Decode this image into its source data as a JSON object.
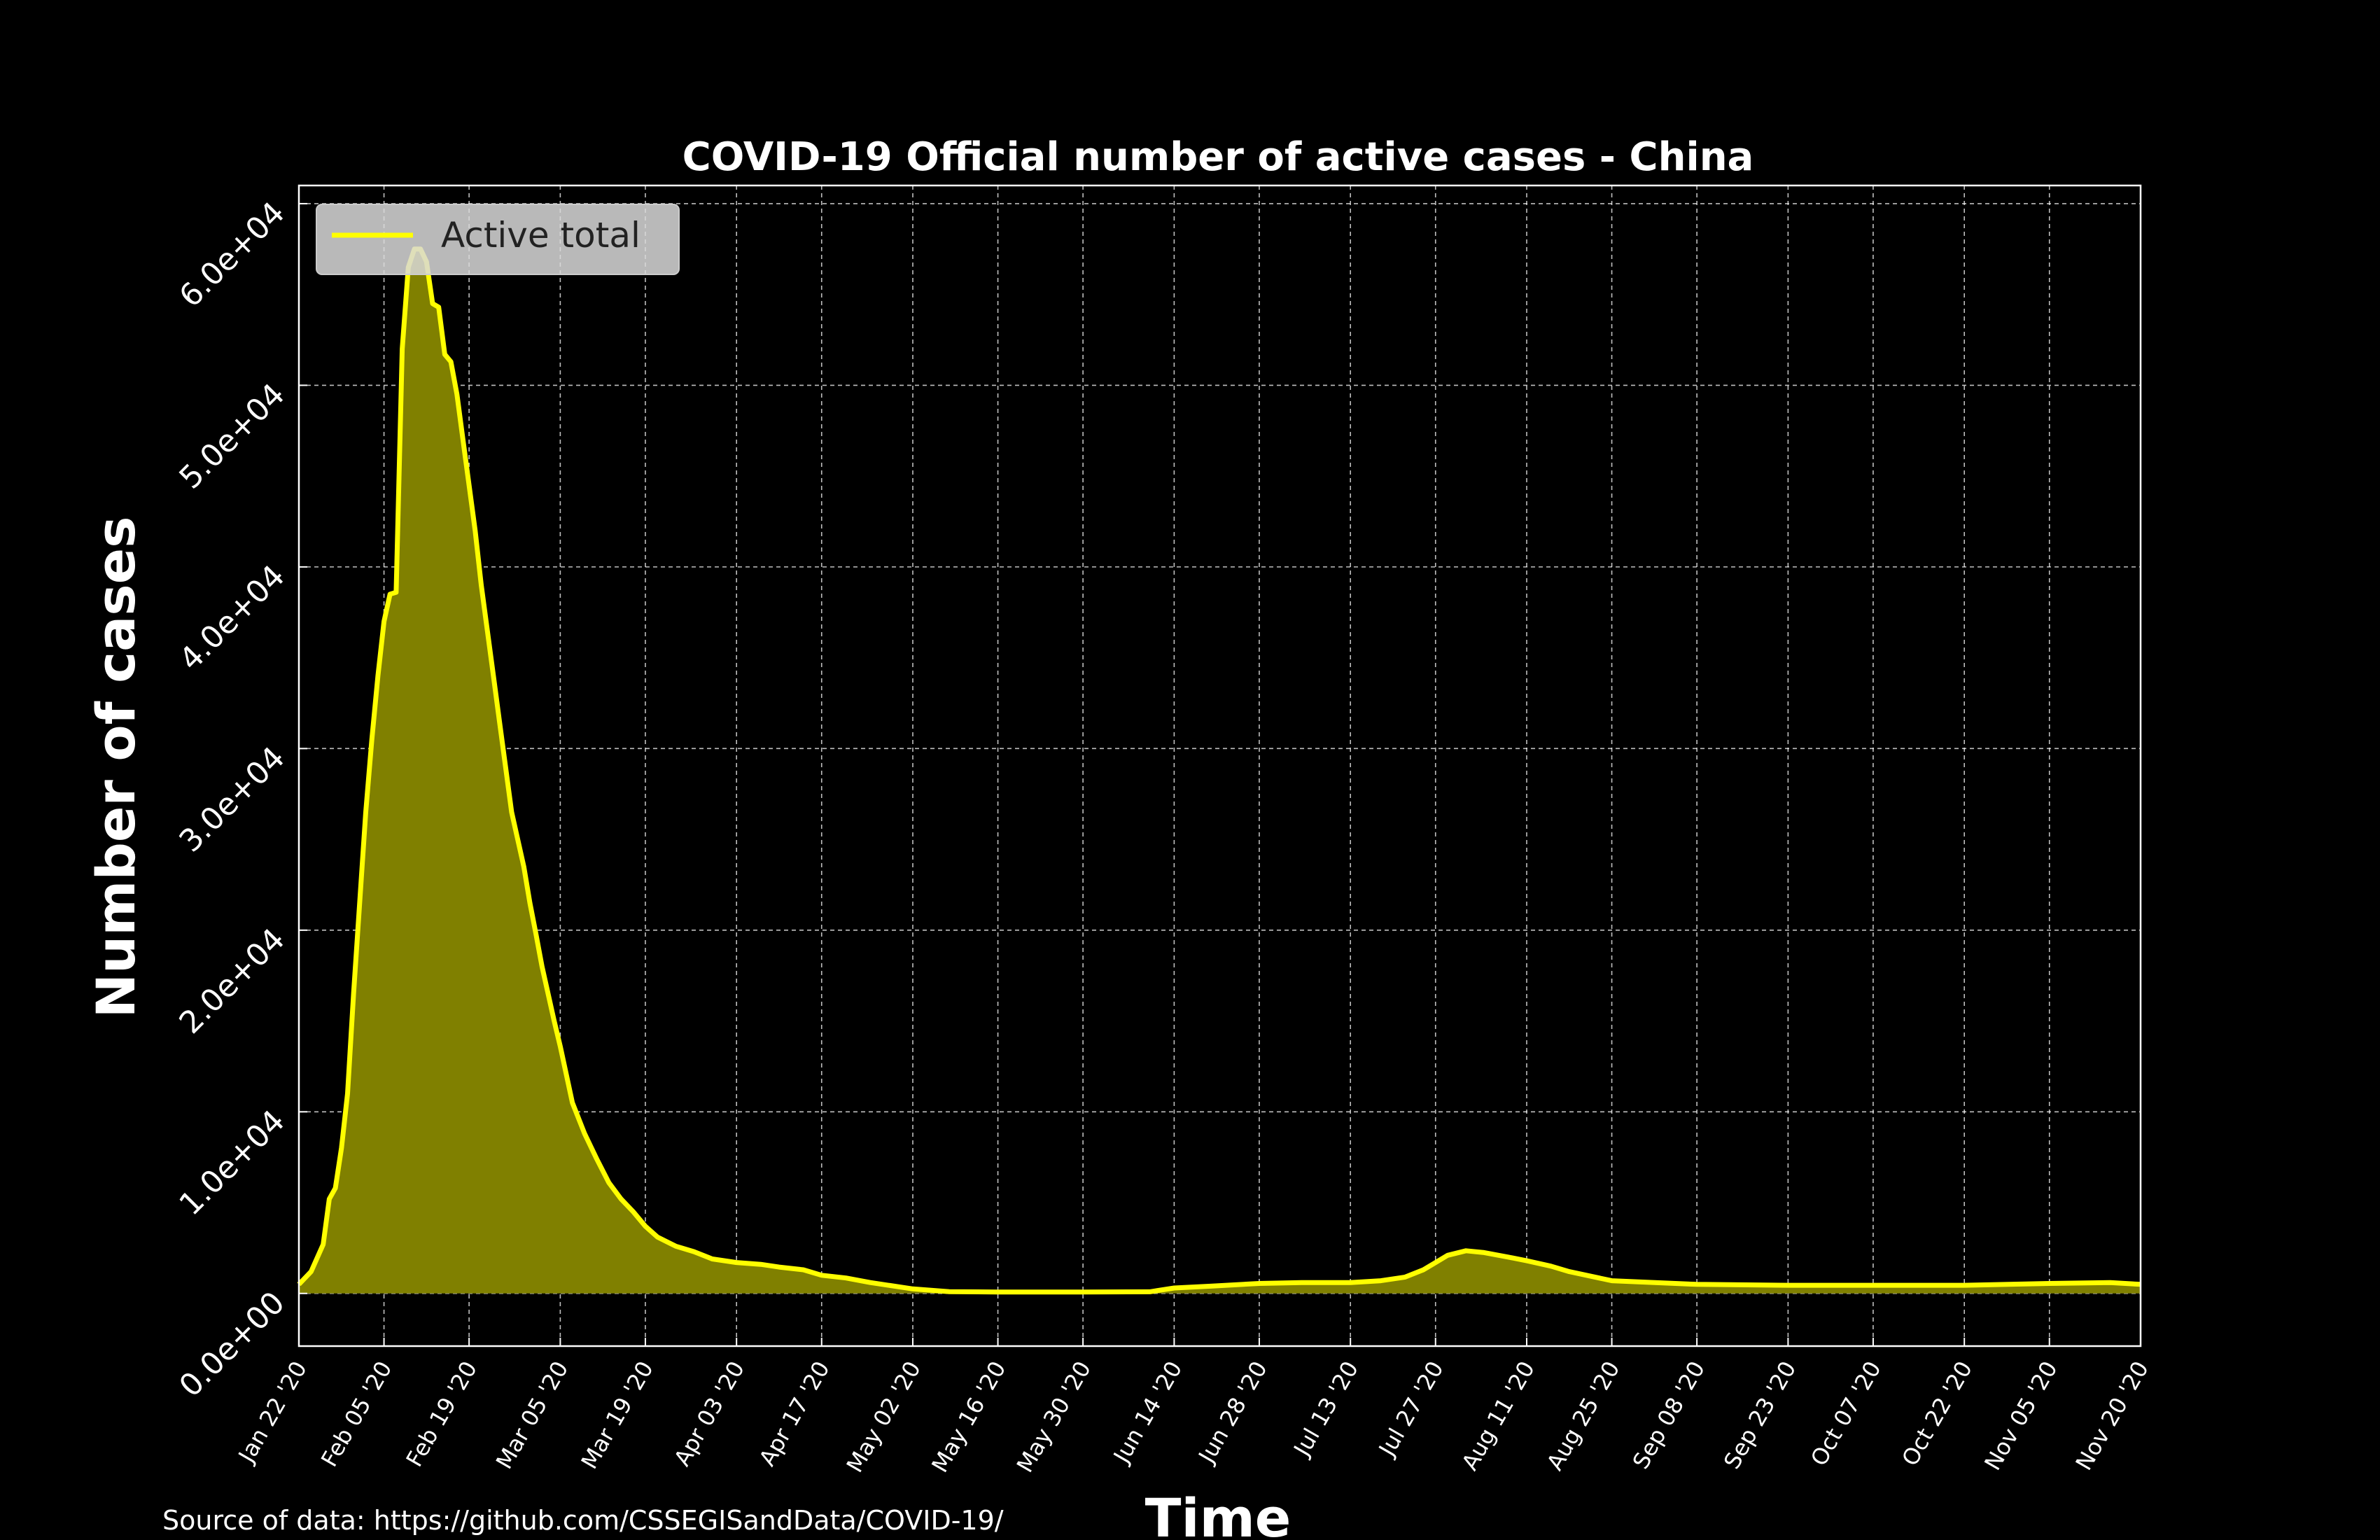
{
  "chart_data": {
    "type": "area",
    "title": "COVID-19 Official number of active cases - China",
    "xlabel": "Time",
    "ylabel": "Number of cases",
    "grid": true,
    "legend_position": "top-left",
    "colors": {
      "line": "#ffff00",
      "fill": "#808000",
      "background": "#000000",
      "grid": "#ffffff"
    },
    "ylim": [
      -2900,
      61000
    ],
    "xlim": [
      "2020-01-22",
      "2020-11-20"
    ],
    "x_ticks": [
      "Jan 22 '20",
      "Feb 05 '20",
      "Feb 19 '20",
      "Mar 05 '20",
      "Mar 19 '20",
      "Apr 03 '20",
      "Apr 17 '20",
      "May 02 '20",
      "May 16 '20",
      "May 30 '20",
      "Jun 14 '20",
      "Jun 28 '20",
      "Jul 13 '20",
      "Jul 27 '20",
      "Aug 11 '20",
      "Aug 25 '20",
      "Sep 08 '20",
      "Sep 23 '20",
      "Oct 07 '20",
      "Oct 22 '20",
      "Nov 05 '20",
      "Nov 20 '20"
    ],
    "x_tick_dates": [
      "2020-01-22",
      "2020-02-05",
      "2020-02-19",
      "2020-03-05",
      "2020-03-19",
      "2020-04-03",
      "2020-04-17",
      "2020-05-02",
      "2020-05-16",
      "2020-05-30",
      "2020-06-14",
      "2020-06-28",
      "2020-07-13",
      "2020-07-27",
      "2020-08-11",
      "2020-08-25",
      "2020-09-08",
      "2020-09-23",
      "2020-10-07",
      "2020-10-22",
      "2020-11-05",
      "2020-11-20"
    ],
    "y_ticks": [
      0,
      10000,
      20000,
      30000,
      40000,
      50000,
      60000
    ],
    "y_tick_labels": [
      "0.0e+00",
      "1.0e+04",
      "2.0e+04",
      "3.0e+04",
      "4.0e+04",
      "5.0e+04",
      "6.0e+04"
    ],
    "series": [
      {
        "name": "Active total",
        "x": [
          "2020-01-22",
          "2020-01-24",
          "2020-01-26",
          "2020-01-27",
          "2020-01-28",
          "2020-01-29",
          "2020-01-30",
          "2020-01-31",
          "2020-02-01",
          "2020-02-02",
          "2020-02-03",
          "2020-02-04",
          "2020-02-05",
          "2020-02-06",
          "2020-02-07",
          "2020-02-08",
          "2020-02-09",
          "2020-02-10",
          "2020-02-11",
          "2020-02-12",
          "2020-02-13",
          "2020-02-14",
          "2020-02-15",
          "2020-02-16",
          "2020-02-17",
          "2020-02-18",
          "2020-02-19",
          "2020-02-20",
          "2020-02-21",
          "2020-02-22",
          "2020-02-23",
          "2020-02-24",
          "2020-02-25",
          "2020-02-26",
          "2020-02-27",
          "2020-02-28",
          "2020-02-29",
          "2020-03-01",
          "2020-03-02",
          "2020-03-03",
          "2020-03-04",
          "2020-03-05",
          "2020-03-07",
          "2020-03-09",
          "2020-03-11",
          "2020-03-13",
          "2020-03-15",
          "2020-03-17",
          "2020-03-19",
          "2020-03-21",
          "2020-03-24",
          "2020-03-27",
          "2020-03-30",
          "2020-04-03",
          "2020-04-07",
          "2020-04-10",
          "2020-04-14",
          "2020-04-17",
          "2020-04-21",
          "2020-04-25",
          "2020-05-02",
          "2020-05-08",
          "2020-05-16",
          "2020-05-30",
          "2020-06-10",
          "2020-06-14",
          "2020-06-20",
          "2020-06-28",
          "2020-07-05",
          "2020-07-13",
          "2020-07-18",
          "2020-07-22",
          "2020-07-25",
          "2020-07-27",
          "2020-07-29",
          "2020-08-01",
          "2020-08-04",
          "2020-08-08",
          "2020-08-11",
          "2020-08-15",
          "2020-08-18",
          "2020-08-25",
          "2020-09-08",
          "2020-09-23",
          "2020-10-07",
          "2020-10-22",
          "2020-11-05",
          "2020-11-15",
          "2020-11-20"
        ],
        "y": [
          500,
          1200,
          2700,
          5200,
          5800,
          8000,
          11000,
          16500,
          21500,
          26500,
          30500,
          34000,
          37000,
          38500,
          38600,
          52000,
          56500,
          57500,
          57500,
          56800,
          54500,
          54300,
          51700,
          51300,
          49500,
          47000,
          44500,
          42000,
          39000,
          36500,
          34000,
          31500,
          29000,
          26500,
          25000,
          23500,
          21500,
          19800,
          18000,
          16500,
          15000,
          13600,
          10500,
          8800,
          7400,
          6100,
          5200,
          4500,
          3700,
          3100,
          2600,
          2300,
          1900,
          1700,
          1600,
          1450,
          1300,
          1000,
          850,
          600,
          250,
          100,
          80,
          80,
          90,
          300,
          400,
          550,
          600,
          600,
          700,
          900,
          1300,
          1700,
          2100,
          2350,
          2250,
          2000,
          1800,
          1500,
          1200,
          700,
          500,
          450,
          450,
          450,
          550,
          600,
          500
        ]
      }
    ]
  },
  "footer": {
    "source": "Source of data: https://github.com/CSSEGISandData/COVID-19/"
  }
}
